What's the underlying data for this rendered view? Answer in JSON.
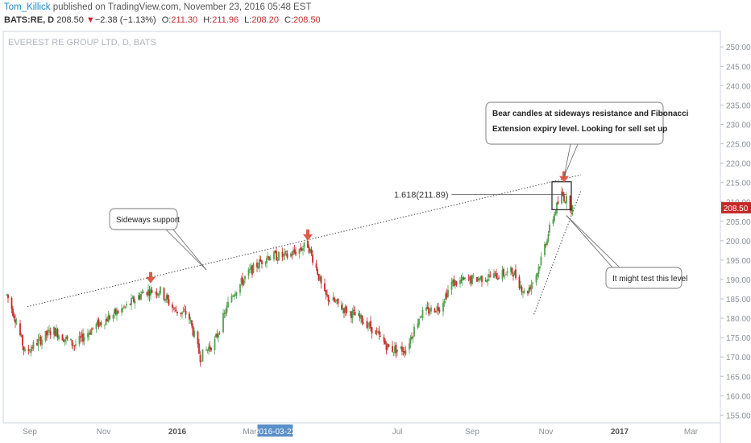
{
  "header": {
    "author": "Tom_Killick",
    "published": " published on TradingView.com, November 23, 2016 05:48 EST",
    "symbol": "BATS:RE, D",
    "price": "208.50",
    "change_arrow": "▼",
    "change": "−2.38 (−1.13%)",
    "o_label": "O:",
    "o_value": "211.30",
    "h_label": "H:",
    "h_value": "211.96",
    "l_label": "L:",
    "l_value": "208.20",
    "c_label": "C:",
    "c_value": "208.50"
  },
  "chart_data": {
    "type": "candlestick",
    "title": "EVEREST RE GROUP LTD, D, BATS",
    "ylim": [
      153,
      254
    ],
    "y_ticks": [
      155,
      160,
      165,
      170,
      175,
      180,
      185,
      190,
      195,
      200,
      205,
      210,
      215,
      220,
      225,
      230,
      235,
      240,
      245,
      250
    ],
    "y_tick_labels": [
      "155.00",
      "160.00",
      "165.00",
      "170.00",
      "175.00",
      "180.00",
      "185.00",
      "190.00",
      "195.00",
      "200.00",
      "205.00",
      "210.00",
      "215.00",
      "220.00",
      "225.00",
      "230.00",
      "235.00",
      "240.00",
      "245.00",
      "250.00"
    ],
    "x_tick_labels": [
      "Sep",
      "Nov",
      "2016",
      "Mar",
      "2016-03-22",
      "Jul",
      "Sep",
      "Nov",
      "2017",
      "Mar"
    ],
    "highlighted_date": "2016-03-22",
    "last_price": 208.5,
    "price_path": [
      {
        "date": "2015-08-13",
        "close": 186
      },
      {
        "date": "2015-08-20",
        "close": 180
      },
      {
        "date": "2015-08-28",
        "close": 171
      },
      {
        "date": "2015-09-08",
        "close": 174
      },
      {
        "date": "2015-09-20",
        "close": 177
      },
      {
        "date": "2015-10-08",
        "close": 173
      },
      {
        "date": "2015-10-25",
        "close": 178
      },
      {
        "date": "2015-11-20",
        "close": 183
      },
      {
        "date": "2015-12-05",
        "close": 187
      },
      {
        "date": "2015-12-18",
        "close": 187
      },
      {
        "date": "2015-12-30",
        "close": 182
      },
      {
        "date": "2016-01-10",
        "close": 181
      },
      {
        "date": "2016-01-20",
        "close": 170
      },
      {
        "date": "2016-02-01",
        "close": 174
      },
      {
        "date": "2016-02-15",
        "close": 186
      },
      {
        "date": "2016-03-01",
        "close": 192
      },
      {
        "date": "2016-03-15",
        "close": 196
      },
      {
        "date": "2016-04-01",
        "close": 196
      },
      {
        "date": "2016-04-18",
        "close": 199
      },
      {
        "date": "2016-04-26",
        "close": 192
      },
      {
        "date": "2016-05-01",
        "close": 186
      },
      {
        "date": "2016-05-20",
        "close": 182
      },
      {
        "date": "2016-06-05",
        "close": 179
      },
      {
        "date": "2016-06-25",
        "close": 172
      },
      {
        "date": "2016-07-08",
        "close": 172
      },
      {
        "date": "2016-07-20",
        "close": 181
      },
      {
        "date": "2016-08-05",
        "close": 183
      },
      {
        "date": "2016-08-15",
        "close": 189
      },
      {
        "date": "2016-09-01",
        "close": 190
      },
      {
        "date": "2016-09-20",
        "close": 191
      },
      {
        "date": "2016-10-05",
        "close": 192
      },
      {
        "date": "2016-10-15",
        "close": 186
      },
      {
        "date": "2016-10-25",
        "close": 192
      },
      {
        "date": "2016-11-02",
        "close": 201
      },
      {
        "date": "2016-11-09",
        "close": 208
      },
      {
        "date": "2016-11-14",
        "close": 212
      },
      {
        "date": "2016-11-23",
        "close": 208.5
      }
    ],
    "trendlines": [
      {
        "name": "sideways-support",
        "from": {
          "date": "2015-08-30",
          "value": 183
        },
        "to": {
          "date": "2016-11-30",
          "value": 217
        }
      },
      {
        "name": "rising-support",
        "from": {
          "date": "2016-10-22",
          "value": 181
        },
        "to": {
          "date": "2016-11-30",
          "value": 213
        }
      },
      {
        "name": "fib-extension-level",
        "from": {
          "date": "2016-08-15",
          "value": 211.89
        },
        "to": {
          "date": "2016-11-18",
          "value": 211.89
        }
      }
    ],
    "fib_label": "1.618(211.89)",
    "annotations": [
      {
        "text": "Sideways support"
      },
      {
        "text_line1": "Bear candles at sideways resistance and Fibonacci",
        "text_line2": "Extension expiry level. Looking for sell set up"
      },
      {
        "text": "It might test this level"
      }
    ],
    "marker_arrows": [
      {
        "date": "2015-12-10",
        "value": 189
      },
      {
        "date": "2016-04-18",
        "value": 200
      },
      {
        "date": "2016-11-16",
        "value": 215
      }
    ],
    "colors": {
      "up": "#53a04f",
      "down": "#c62828",
      "arrow": "#e05a47",
      "price_tag": "#c62828",
      "date_tag": "#5b8fc7"
    }
  }
}
